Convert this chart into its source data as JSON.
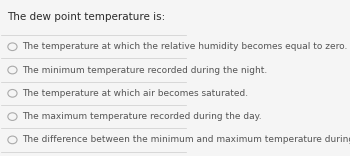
{
  "title": "The dew point temperature is:",
  "options": [
    "The temperature at which the relative humidity becomes equal to zero.",
    "The minimum temperature recorded during the night.",
    "The temperature at which air becomes saturated.",
    "The maximum temperature recorded during the day.",
    "The difference between the minimum and maximum temperature during a diurnal cycle."
  ],
  "background_color": "#f5f5f5",
  "title_color": "#2c2c2c",
  "option_color": "#555555",
  "divider_color": "#cccccc",
  "radio_color": "#aaaaaa",
  "title_fontsize": 7.5,
  "option_fontsize": 6.5
}
